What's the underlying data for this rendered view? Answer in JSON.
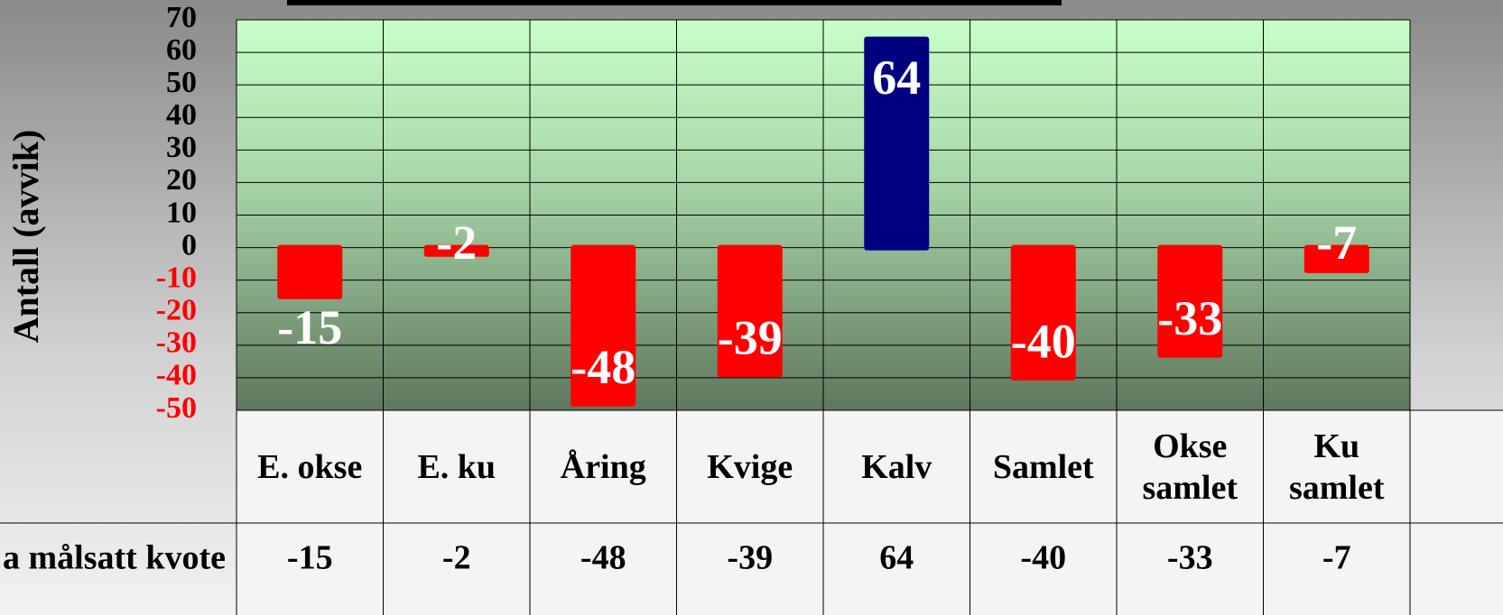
{
  "chart_data": {
    "type": "bar",
    "ylabel": "Antall (avvik)",
    "categories": [
      "E. okse",
      "E. ku",
      "Åring",
      "Kvige",
      "Kalv",
      "Samlet",
      "Okse\nsamlet",
      "Ku\nsamlet"
    ],
    "values": [
      -15,
      -2,
      -48,
      -39,
      64,
      -40,
      -33,
      -7
    ],
    "color": "#000080",
    "negative_color": "#ff0000",
    "ylim": [
      -50,
      70
    ],
    "yticks": [
      -50,
      -40,
      -30,
      -20,
      -10,
      0,
      10,
      20,
      30,
      40,
      50,
      60,
      70
    ],
    "grid": true,
    "table": {
      "row_label": "a målsatt kvote",
      "values": [
        -15,
        -2,
        -48,
        -39,
        64,
        -40,
        -33,
        -7
      ]
    }
  }
}
